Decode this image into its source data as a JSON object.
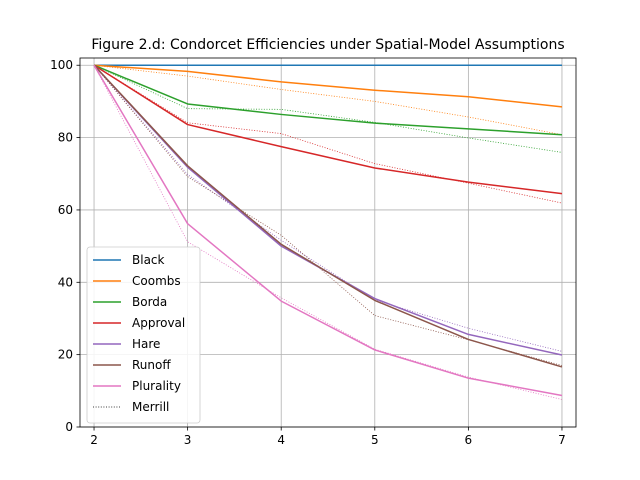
{
  "chart_data": {
    "type": "line",
    "title": "Figure 2.d: Condorcet Efficiencies under Spatial-Model Assumptions",
    "xlabel": "",
    "ylabel": "",
    "xlim": [
      1.85,
      7.15
    ],
    "ylim": [
      0,
      102
    ],
    "x": [
      2,
      3,
      4,
      5,
      6,
      7
    ],
    "xticks": [
      2,
      3,
      4,
      5,
      6,
      7
    ],
    "yticks": [
      0,
      20,
      40,
      60,
      80,
      100
    ],
    "grid": true,
    "legend_position": "lower-left",
    "series": [
      {
        "name": "Black",
        "color": "#1f77b4",
        "values": [
          100,
          100,
          100,
          100,
          100,
          100
        ]
      },
      {
        "name": "Coombs",
        "color": "#ff7f0e",
        "values": [
          100,
          98.3,
          95.4,
          93.1,
          91.3,
          88.5
        ]
      },
      {
        "name": "Borda",
        "color": "#2ca02c",
        "values": [
          100,
          89.3,
          86.4,
          84.0,
          82.4,
          80.8
        ]
      },
      {
        "name": "Approval",
        "color": "#d62728",
        "values": [
          100,
          83.6,
          77.5,
          71.6,
          67.7,
          64.5
        ]
      },
      {
        "name": "Hare",
        "color": "#9467bd",
        "values": [
          100,
          71.8,
          50.0,
          35.5,
          25.6,
          19.9
        ]
      },
      {
        "name": "Runoff",
        "color": "#8c564b",
        "values": [
          100,
          72.2,
          50.5,
          35.0,
          24.2,
          16.6
        ]
      },
      {
        "name": "Plurality",
        "color": "#e377c2",
        "values": [
          100,
          56.2,
          34.8,
          21.3,
          13.5,
          8.7
        ]
      }
    ],
    "merrill_series": [
      {
        "color": "#ff7f0e",
        "values": [
          100,
          97.0,
          93.3,
          90.0,
          85.7,
          80.8
        ]
      },
      {
        "color": "#2ca02c",
        "values": [
          100,
          88.0,
          87.8,
          84.2,
          79.9,
          75.9
        ]
      },
      {
        "color": "#d62728",
        "values": [
          100,
          84.1,
          81.1,
          72.8,
          67.4,
          61.9
        ]
      },
      {
        "color": "#9467bd",
        "values": [
          100,
          69.8,
          51.6,
          35.1,
          27.3,
          20.9
        ]
      },
      {
        "color": "#8c564b",
        "values": [
          100,
          69.2,
          53.0,
          30.8,
          24.1,
          17.0
        ]
      },
      {
        "color": "#e377c2",
        "values": [
          100,
          51.2,
          35.7,
          21.5,
          13.8,
          7.6
        ]
      }
    ],
    "merrill_legend": {
      "name": "Merrill",
      "color": "#000000"
    }
  }
}
